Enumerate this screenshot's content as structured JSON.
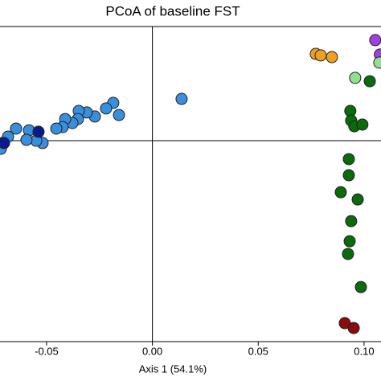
{
  "chart_data": {
    "type": "scatter",
    "title": "PCoA of baseline FST",
    "x_label": "Axis 1 (54.1%)",
    "xlim": [
      -0.072,
      0.108
    ],
    "ylim": [
      -0.0947,
      0.0538
    ],
    "xticks": [
      -0.05,
      {
        "value": 0,
        "label": "0.00"
      },
      0.05,
      {
        "value": 0.1,
        "label": "0.10"
      }
    ],
    "series": [
      {
        "color": "#3a8fdc",
        "x": [
          0.0138,
          -0.0185,
          -0.0158,
          -0.0219,
          -0.0272,
          -0.031,
          -0.0348,
          -0.0352,
          -0.0378,
          -0.0412,
          -0.0424,
          -0.0454,
          -0.0519,
          -0.0549,
          -0.0583,
          -0.0595,
          -0.0644,
          -0.0682,
          -0.0709,
          -0.0716
        ],
        "y": [
          0.0197,
          0.0178,
          0.0121,
          0.0152,
          0.0114,
          0.0133,
          0.014,
          0.0102,
          0.0083,
          0.0102,
          0.0064,
          0.0057,
          -0.0011,
          0,
          0.0049,
          0.0004,
          0.0057,
          0.0019,
          -0.0011,
          -0.0038
        ]
      },
      {
        "color": "#0a1a8c",
        "x": [
          -0.0538,
          -0.0701
        ],
        "y": [
          0.0042,
          -0.0011
        ]
      },
      {
        "color": "#f0a020",
        "x": [
          0.0772,
          0.0795,
          0.0848
        ],
        "y": [
          0.0409,
          0.0402,
          0.0394
        ]
      },
      {
        "color": "#a040e0",
        "x": [
          0.1053,
          0.1075
        ],
        "y": [
          0.0474,
          0.0406
        ]
      },
      {
        "color": "#90e090",
        "x": [
          0.0958,
          0.1072
        ],
        "y": [
          0.0296,
          0.0368
        ]
      },
      {
        "color": "#0a6b0a",
        "x": [
          0.1027,
          0.0935,
          0.0939,
          0.0954,
          0.0992,
          0.0928,
          0.0928,
          0.089,
          0.097,
          0.0939,
          0.0932,
          0.0924,
          0.0985
        ],
        "y": [
          0.028,
          0.014,
          0.0095,
          0.0068,
          0.0076,
          -0.0087,
          -0.0163,
          -0.0243,
          -0.0277,
          -0.0379,
          -0.0474,
          -0.0534,
          -0.069
        ]
      },
      {
        "color": "#8b0a0a",
        "x": [
          0.0909,
          0.0951
        ],
        "y": [
          -0.086,
          -0.0883
        ]
      }
    ]
  }
}
